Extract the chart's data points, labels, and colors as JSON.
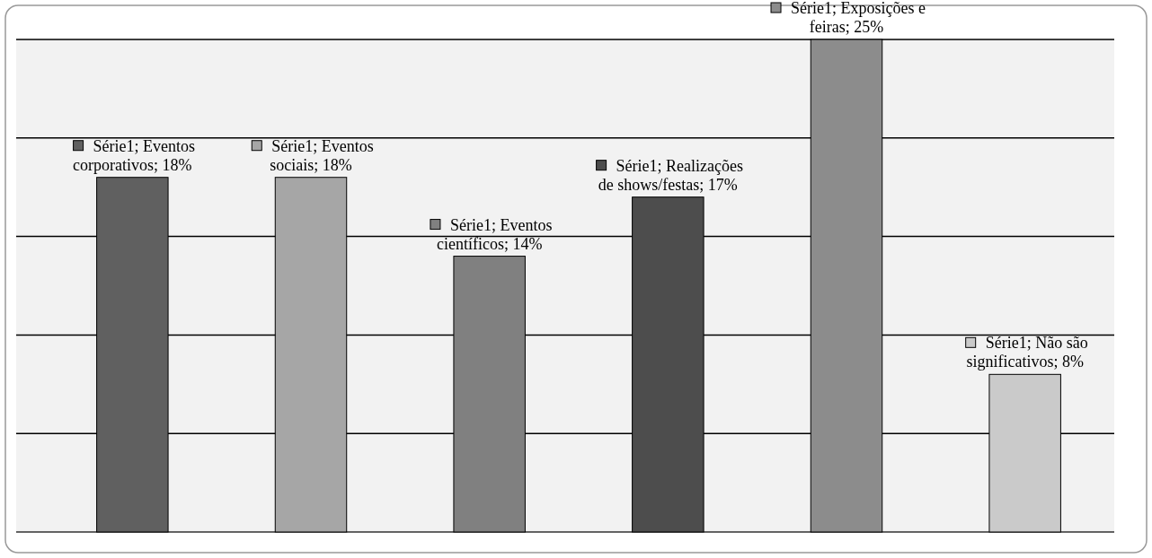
{
  "chart_data": {
    "type": "bar",
    "categories": [
      null,
      null,
      null,
      null,
      null,
      null
    ],
    "values": [
      18,
      18,
      14,
      17,
      25,
      8
    ],
    "colors": [
      "#606060",
      "#a6a6a6",
      "#808080",
      "#4d4d4d",
      "#8c8c8c",
      "#cacaca"
    ],
    "value_labels": [
      "Série1; Eventos corporativos; 18%",
      "Série1; Eventos sociais; 18%",
      "Série1; Eventos científicos; 14%",
      "Série1; Realizações de shows/festas; 17%",
      "Série1; Exposições e feiras; 25%",
      "Série1; Não são significativos; 8%"
    ],
    "ylim": [
      0,
      25
    ],
    "yticks": [
      {
        "value": 0,
        "label": null
      },
      {
        "value": 5,
        "label": null
      },
      {
        "value": 10,
        "label": null
      },
      {
        "value": 15,
        "label": null
      },
      {
        "value": 20,
        "label": null
      },
      {
        "value": 25,
        "label": null
      }
    ],
    "grid": "y"
  }
}
